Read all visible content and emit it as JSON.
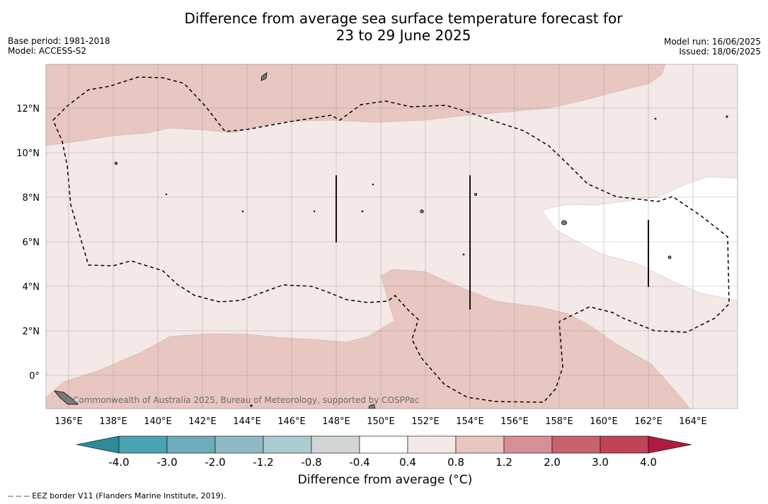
{
  "title_line1": "Difference from average sea surface temperature forecast for",
  "title_line2": "23 to 29 June 2025",
  "meta_left": [
    "Base period: 1981-2018",
    "Model: ACCESS-S2"
  ],
  "meta_right": [
    "Model run: 16/06/2025",
    "Issued: 18/06/2025"
  ],
  "map": {
    "lon_range": [
      135,
      166
    ],
    "lat_range": [
      -1.5,
      14
    ],
    "lon_ticks": [
      "136°E",
      "138°E",
      "140°E",
      "142°E",
      "144°E",
      "146°E",
      "148°E",
      "150°E",
      "152°E",
      "154°E",
      "156°E",
      "158°E",
      "160°E",
      "162°E",
      "164°E"
    ],
    "lat_ticks": [
      "12°N",
      "10°N",
      "8°N",
      "6°N",
      "4°N",
      "2°N",
      "0°"
    ],
    "credit": "Commonwealth of Australia 2025, Bureau of Meteorology, supported by COSPPac"
  },
  "colorbar": {
    "tick_labels": [
      "-4.0",
      "-3.0",
      "-2.0",
      "-1.2",
      "-0.8",
      "-0.4",
      "0.4",
      "0.8",
      "1.2",
      "2.0",
      "3.0",
      "4.0"
    ],
    "colors": [
      "#2f8a99",
      "#4aa3b3",
      "#6eacbb",
      "#8fbac4",
      "#aacbd0",
      "#d0d6d5",
      "#ffffff",
      "#f5e9e7",
      "#e8c7c1",
      "#d68f96",
      "#c8636e",
      "#bf4556",
      "#ad1c3f"
    ],
    "label": "Difference from average (°C)"
  },
  "legend_footnote": "-- -- -- EEZ border V11 (Flanders Marine Institute, 2019)."
}
